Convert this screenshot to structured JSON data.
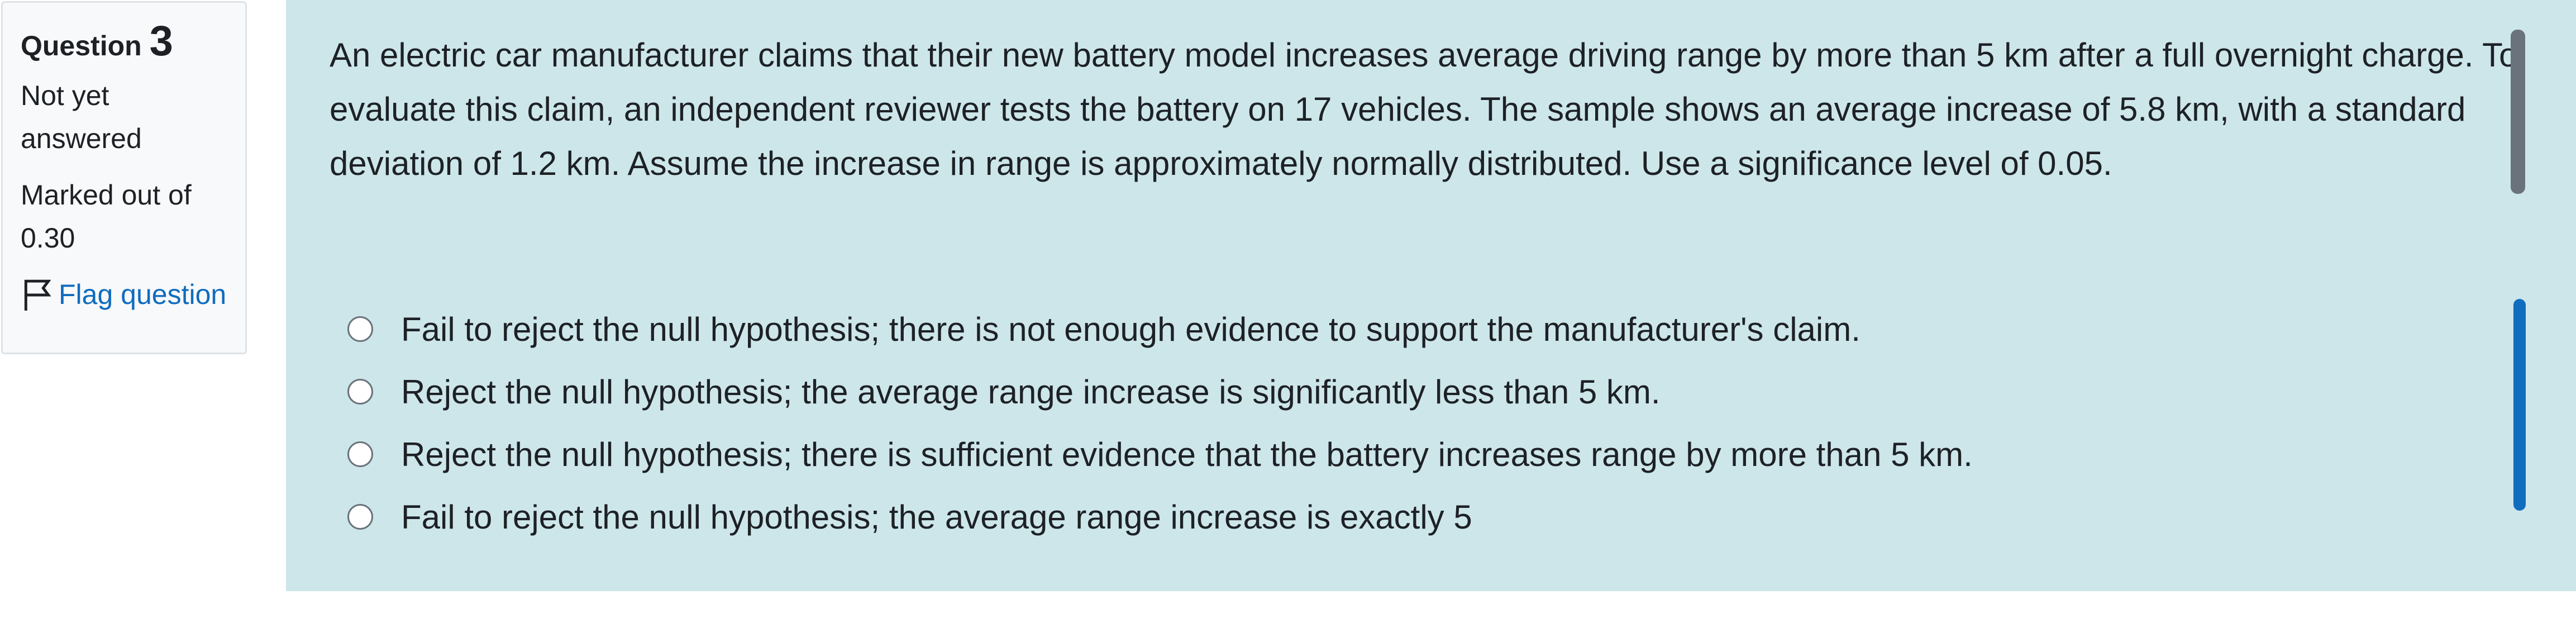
{
  "info": {
    "label": "Question",
    "number": "3",
    "state": "Not yet answered",
    "marks": "Marked out of 0.30",
    "flag": "Flag question"
  },
  "question": {
    "text": "An electric car manufacturer claims that their new battery model increases average driving range by more than 5 km after a full overnight charge. To evaluate this claim, an independent reviewer tests the battery on 17 vehicles. The sample shows an average increase of 5.8 km, with a standard deviation of 1.2 km. Assume the increase in range is approximately normally distributed. Use a significance level of 0.05.",
    "options": [
      "Fail to reject the null hypothesis; there is not enough evidence to support the manufacturer's claim.",
      "Reject the null hypothesis; the average range increase is significantly less than 5 km.",
      "Reject the null hypothesis; there is sufficient evidence that the battery increases range by more than 5 km.",
      "Fail to reject the null hypothesis; the average range increase is exactly 5"
    ]
  }
}
